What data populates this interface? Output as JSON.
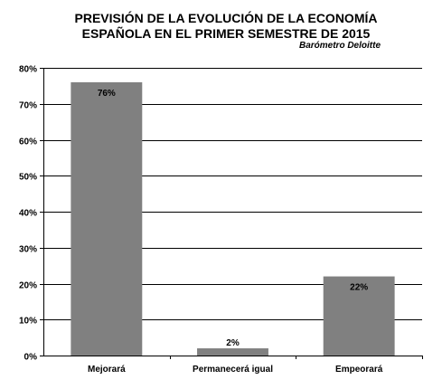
{
  "chart_data": {
    "type": "bar",
    "title": "PREVISIÓN DE LA EVOLUCIÓN DE LA ECONOMÍA ESPAÑOLA EN EL PRIMER SEMESTRE DE 2015",
    "title_lines": [
      "PREVISIÓN DE LA EVOLUCIÓN DE LA ECONOMÍA",
      "ESPAÑOLA EN EL PRIMER SEMESTRE DE 2015"
    ],
    "subtitle": "Barómetro Deloitte",
    "categories": [
      "Mejorará",
      "Permanecerá igual",
      "Empeorará"
    ],
    "values": [
      76,
      2,
      22
    ],
    "data_labels": [
      "76%",
      "2%",
      "22%"
    ],
    "yticks": [
      0,
      10,
      20,
      30,
      40,
      50,
      60,
      70,
      80
    ],
    "ytick_labels": [
      "0%",
      "10%",
      "20%",
      "30%",
      "40%",
      "50%",
      "60%",
      "70%",
      "80%"
    ],
    "ylim": [
      0,
      80
    ],
    "xlabel": "",
    "ylabel": "",
    "grid": true,
    "legend": "none",
    "bar_color": "#808080",
    "grid_color": "#000000"
  }
}
